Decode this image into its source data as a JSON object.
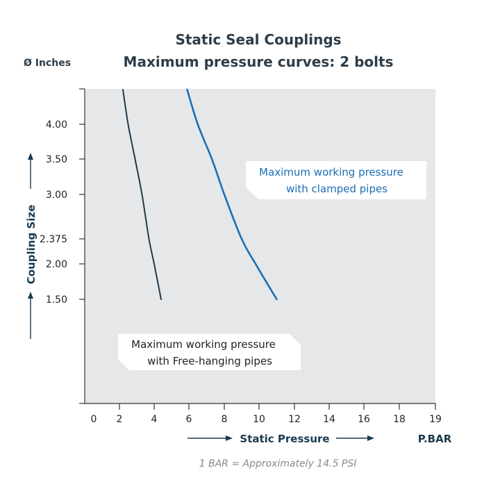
{
  "chart_data": {
    "type": "line",
    "title": "Static Seal Couplings",
    "subtitle": "Maximum pressure curves: 2 bolts",
    "ylabel": "Coupling Size",
    "y_unit": "Ø Inches",
    "xlabel": "Static Pressure",
    "x_unit": "P.BAR",
    "note": "1 BAR = Approximately 14.5 PSI",
    "x_ticks": [
      0,
      2,
      4,
      6,
      8,
      10,
      12,
      14,
      16,
      18,
      19
    ],
    "y_ticks": [
      "4.00",
      "3.50",
      "3.00",
      "2.375",
      "2.00",
      "1.50"
    ],
    "xlim": [
      0,
      19
    ],
    "grid": false,
    "series": [
      {
        "name": "Maximum working pressure with Free-hanging pipes",
        "label_lines": [
          "Maximum working pressure",
          "with Free-hanging pipes"
        ],
        "color": "#1f3a48",
        "points": [
          [
            2.2,
            4.5
          ],
          [
            2.5,
            4.0
          ],
          [
            2.9,
            3.5
          ],
          [
            3.3,
            3.0
          ],
          [
            3.7,
            2.375
          ],
          [
            4.0,
            2.0
          ],
          [
            4.4,
            1.5
          ]
        ]
      },
      {
        "name": "Maximum working pressure with clamped pipes",
        "label_lines": [
          "Maximum working pressure",
          "with clamped pipes"
        ],
        "color": "#1a6fb5",
        "points": [
          [
            5.9,
            4.5
          ],
          [
            6.5,
            4.0
          ],
          [
            7.3,
            3.5
          ],
          [
            8.0,
            3.0
          ],
          [
            9.0,
            2.375
          ],
          [
            9.8,
            2.0
          ],
          [
            11.0,
            1.5
          ]
        ]
      }
    ]
  }
}
